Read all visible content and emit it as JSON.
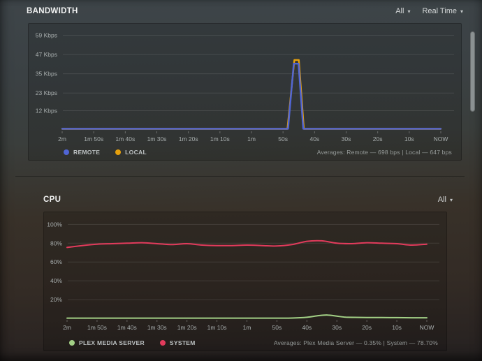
{
  "bandwidth": {
    "title": "BANDWIDTH",
    "all_dropdown": "All",
    "time_dropdown": "Real Time",
    "dropdown_caret": "▾",
    "legend": [
      {
        "label": "REMOTE"
      },
      {
        "label": "LOCAL"
      }
    ],
    "averages": "Averages: Remote — 698 bps | Local — 647 bps"
  },
  "cpu": {
    "title": "CPU",
    "all_dropdown": "All",
    "dropdown_caret": "▾",
    "legend": [
      {
        "label": "PLEX MEDIA SERVER"
      },
      {
        "label": "SYSTEM"
      }
    ],
    "averages": "Averages: Plex Media Server — 0.35% | System — 78.70%"
  },
  "chart_data": [
    {
      "id": "bandwidth-chart",
      "type": "line",
      "title": "BANDWIDTH",
      "ylabel": "Kbps",
      "ylim": [
        0,
        61
      ],
      "x_range_seconds": [
        120,
        0
      ],
      "grid": true,
      "legend_position": "bottom-left",
      "y_ticks": [
        {
          "value": 59,
          "label": "59 Kbps"
        },
        {
          "value": 47,
          "label": "47 Kbps"
        },
        {
          "value": 35,
          "label": "35 Kbps"
        },
        {
          "value": 23,
          "label": "23 Kbps"
        },
        {
          "value": 12,
          "label": "12 Kbps"
        }
      ],
      "x_ticks": [
        "2m",
        "1m 50s",
        "1m 40s",
        "1m 30s",
        "1m 20s",
        "1m 10s",
        "1m",
        "50s",
        "40s",
        "30s",
        "20s",
        "10s",
        "NOW"
      ],
      "series": [
        {
          "name": "LOCAL",
          "color": "#e5a00d",
          "points": [
            [
              120,
              0.65
            ],
            [
              48.6,
              0.65
            ],
            [
              46.4,
              43.6
            ],
            [
              45.0,
              43.6
            ],
            [
              43.4,
              0.65
            ],
            [
              0,
              0.65
            ]
          ]
        },
        {
          "name": "REMOTE",
          "color": "#5065d5",
          "points": [
            [
              120,
              0.7
            ],
            [
              48.4,
              0.7
            ],
            [
              46.6,
              41.3
            ],
            [
              45.1,
              41.3
            ],
            [
              43.6,
              0.7
            ],
            [
              0,
              0.7
            ]
          ]
        }
      ]
    },
    {
      "id": "cpu-chart",
      "type": "line",
      "title": "CPU",
      "ylabel": "%",
      "ylim": [
        0,
        104
      ],
      "x_range_seconds": [
        120,
        0
      ],
      "grid": true,
      "legend_position": "bottom-left",
      "y_ticks": [
        {
          "value": 100,
          "label": "100%"
        },
        {
          "value": 80,
          "label": "80%"
        },
        {
          "value": 60,
          "label": "60%"
        },
        {
          "value": 40,
          "label": "40%"
        },
        {
          "value": 20,
          "label": "20%"
        }
      ],
      "x_ticks": [
        "2m",
        "1m 50s",
        "1m 40s",
        "1m 30s",
        "1m 20s",
        "1m 10s",
        "1m",
        "50s",
        "40s",
        "30s",
        "20s",
        "10s",
        "NOW"
      ],
      "series": [
        {
          "name": "PLEX MEDIA SERVER",
          "color": "#a3d186",
          "points": [
            [
              120,
              0.3
            ],
            [
              90,
              0.3
            ],
            [
              60,
              0.3
            ],
            [
              50,
              0.3
            ],
            [
              45,
              0.4
            ],
            [
              40,
              1.2
            ],
            [
              36,
              3.0
            ],
            [
              33,
              3.6
            ],
            [
              30,
              2.4
            ],
            [
              27,
              1.3
            ],
            [
              24,
              1.1
            ],
            [
              20,
              1.0
            ],
            [
              15,
              0.9
            ],
            [
              10,
              0.8
            ],
            [
              5,
              0.7
            ],
            [
              0,
              0.7
            ]
          ]
        },
        {
          "name": "SYSTEM",
          "color": "#e23b5c",
          "points": [
            [
              120,
              75.5
            ],
            [
              115,
              77.5
            ],
            [
              110,
              79
            ],
            [
              105,
              79.5
            ],
            [
              100,
              80
            ],
            [
              95,
              80.5
            ],
            [
              90,
              79.5
            ],
            [
              85,
              78.5
            ],
            [
              80,
              79.5
            ],
            [
              75,
              78
            ],
            [
              70,
              77.5
            ],
            [
              65,
              77.5
            ],
            [
              60,
              78
            ],
            [
              55,
              77.5
            ],
            [
              50,
              77
            ],
            [
              45,
              78.5
            ],
            [
              40,
              82
            ],
            [
              35,
              82.5
            ],
            [
              30,
              80
            ],
            [
              25,
              79.5
            ],
            [
              20,
              80.5
            ],
            [
              15,
              80
            ],
            [
              10,
              79.5
            ],
            [
              5,
              78
            ],
            [
              0,
              79
            ]
          ]
        }
      ]
    }
  ]
}
